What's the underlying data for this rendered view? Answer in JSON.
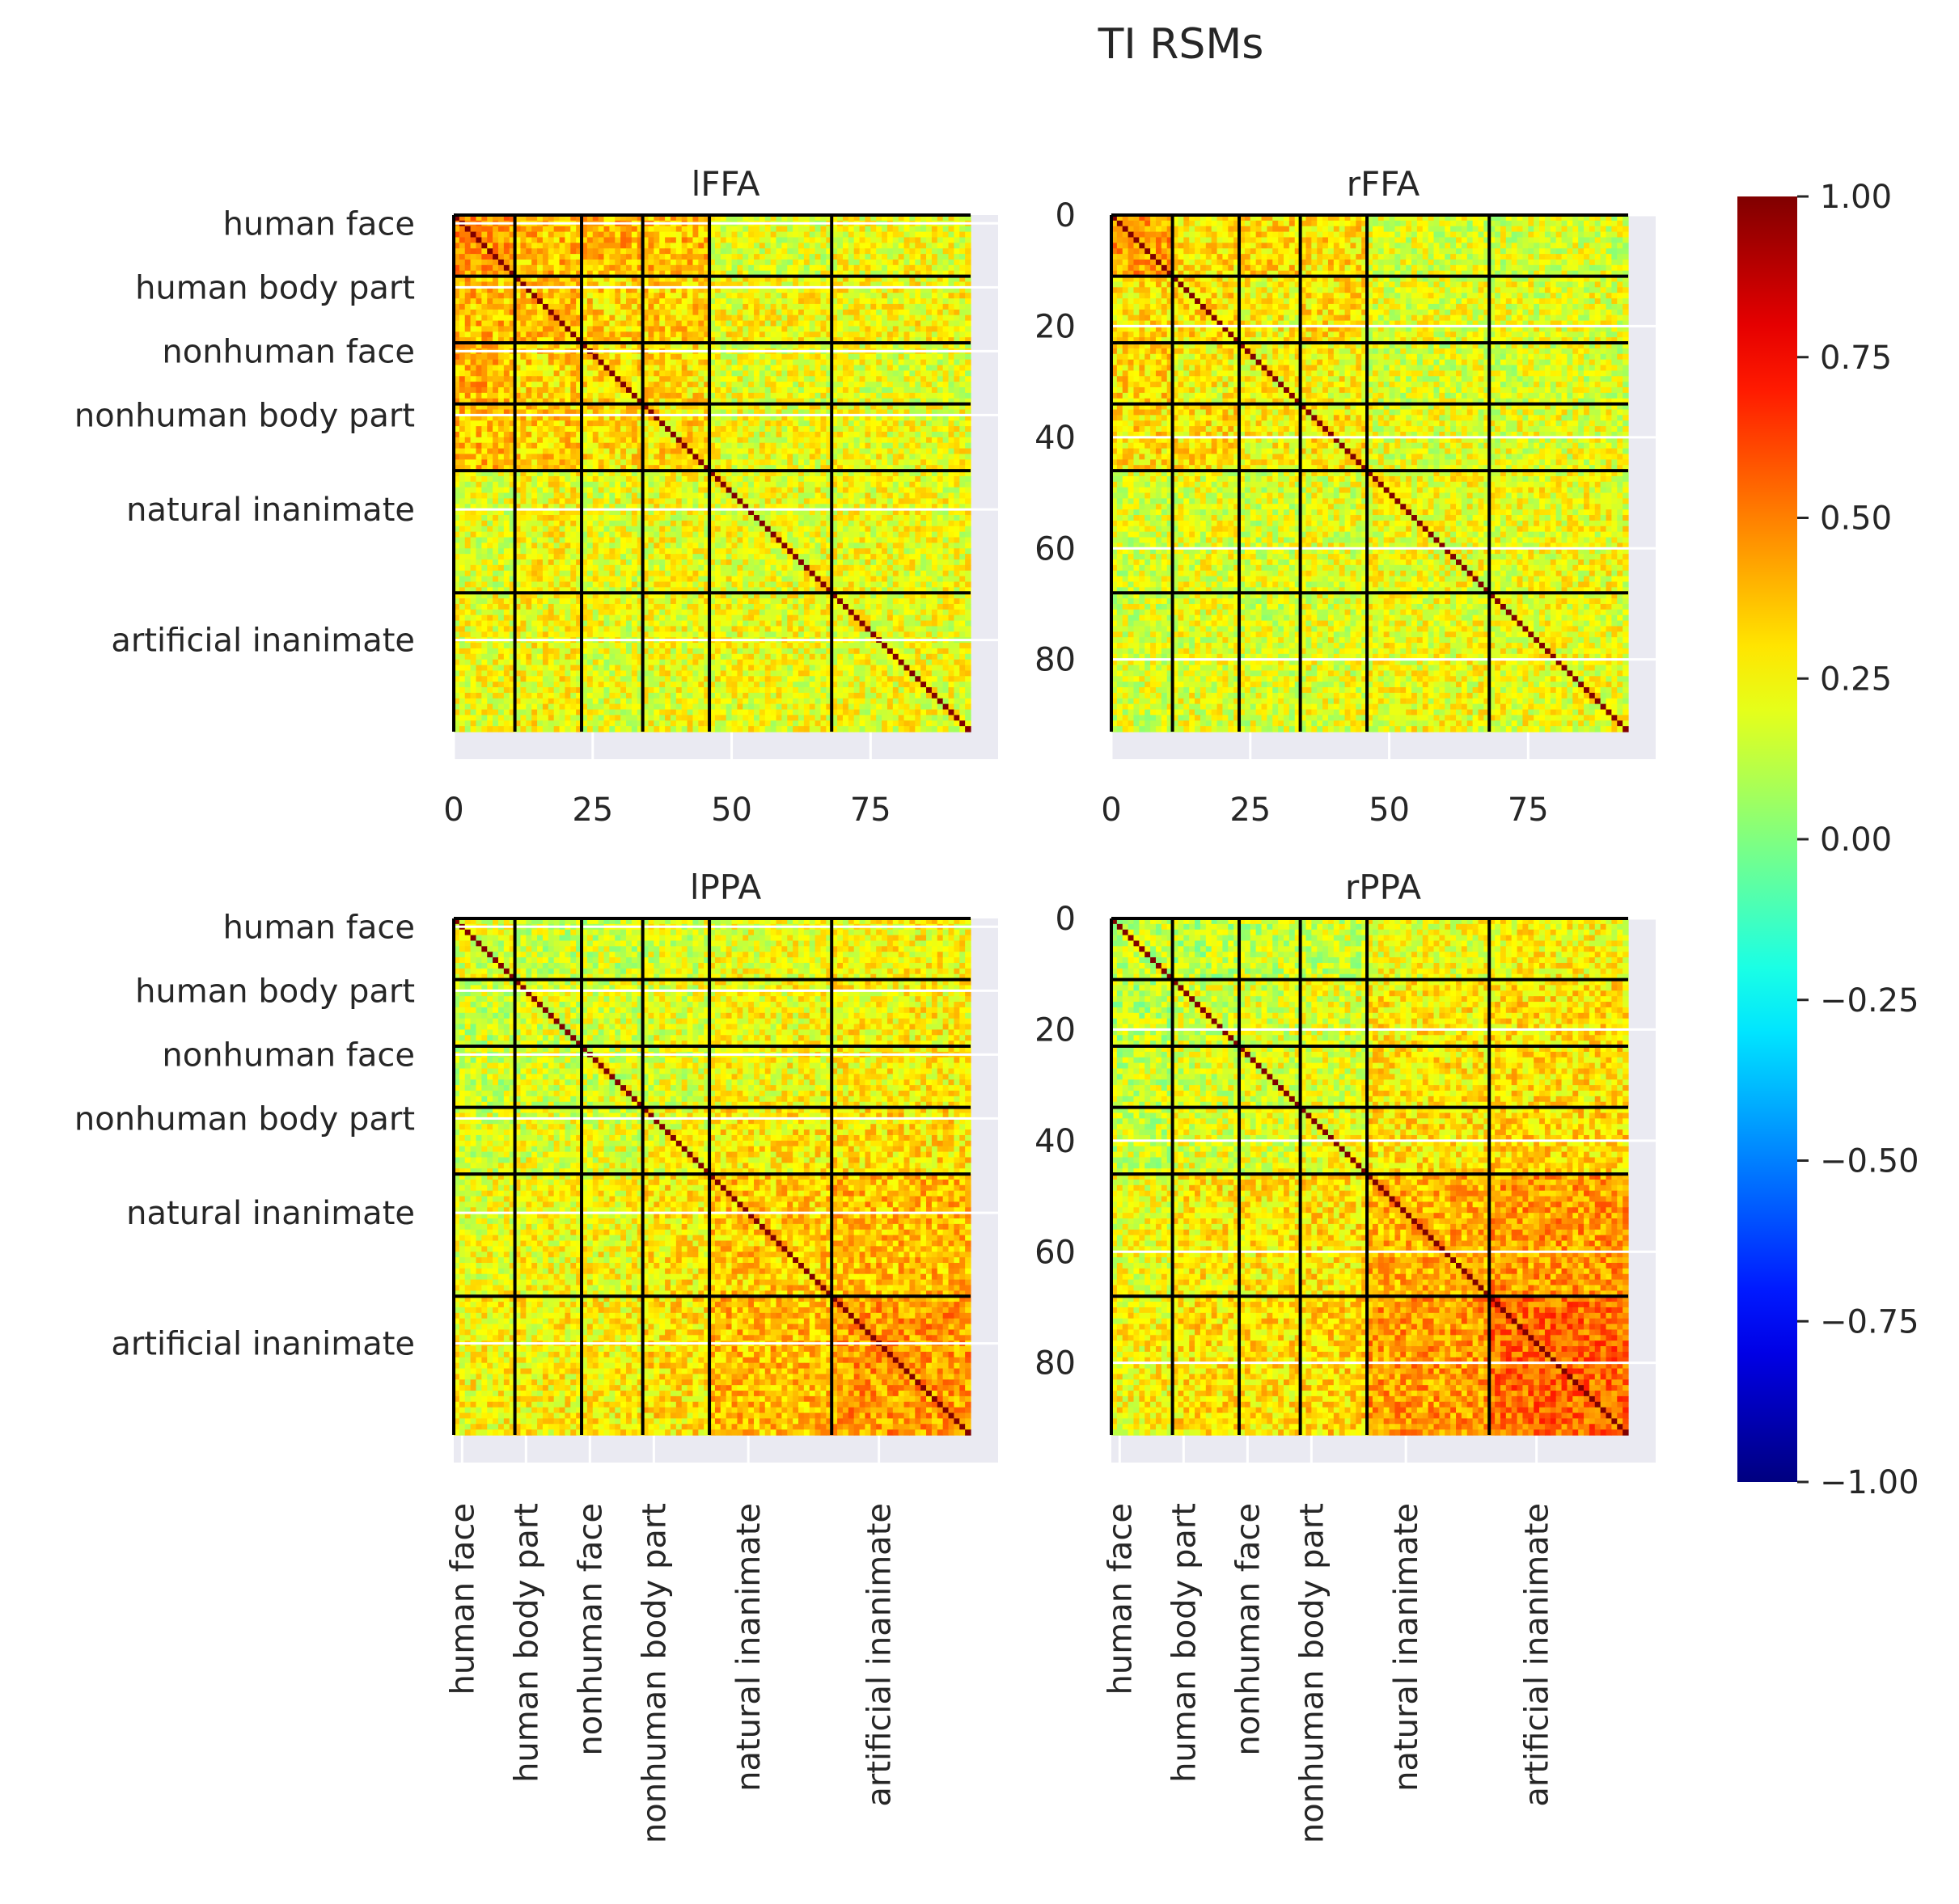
{
  "figure": {
    "title": "TI RSMs"
  },
  "chart_data": {
    "type": "heatmap",
    "matrix_size": 93,
    "categories": [
      "human face",
      "human body part",
      "nonhuman face",
      "nonhuman body part",
      "natural inanimate",
      "artificial inanimate"
    ],
    "category_boundaries": [
      0,
      11,
      23,
      34,
      46,
      68,
      93
    ],
    "numeric_ticks": [
      0,
      25,
      50,
      75
    ],
    "numeric_ticks_y": [
      0,
      20,
      40,
      60,
      80
    ],
    "colormap": "jet",
    "colorbar": {
      "min": -1.0,
      "max": 1.0,
      "tick_values": [
        1.0,
        0.75,
        0.5,
        0.25,
        0.0,
        -0.25,
        -0.5,
        -0.75,
        -1.0
      ],
      "tick_labels": [
        "1.00",
        "0.75",
        "0.50",
        "0.25",
        "0.00",
        "−0.25",
        "−0.50",
        "−0.75",
        "−1.00"
      ]
    },
    "boundary_line_color": "#000000",
    "grid_color": "#ffffff",
    "axes_background": "#eaeaf2",
    "panels": [
      {
        "title": "lFFA",
        "position": "top-left",
        "mean_by_category_block": [
          [
            0.45,
            0.38,
            0.4,
            0.38,
            0.2,
            0.22
          ],
          [
            0.38,
            0.35,
            0.32,
            0.34,
            0.24,
            0.24
          ],
          [
            0.4,
            0.32,
            0.3,
            0.3,
            0.2,
            0.2
          ],
          [
            0.38,
            0.34,
            0.3,
            0.3,
            0.22,
            0.22
          ],
          [
            0.2,
            0.24,
            0.2,
            0.22,
            0.22,
            0.22
          ],
          [
            0.22,
            0.24,
            0.2,
            0.22,
            0.22,
            0.22
          ]
        ]
      },
      {
        "title": "rFFA",
        "position": "top-right",
        "mean_by_category_block": [
          [
            0.45,
            0.3,
            0.32,
            0.3,
            0.18,
            0.18
          ],
          [
            0.3,
            0.3,
            0.25,
            0.3,
            0.2,
            0.2
          ],
          [
            0.32,
            0.25,
            0.25,
            0.25,
            0.18,
            0.18
          ],
          [
            0.3,
            0.3,
            0.25,
            0.28,
            0.2,
            0.2
          ],
          [
            0.18,
            0.2,
            0.18,
            0.2,
            0.22,
            0.22
          ],
          [
            0.18,
            0.2,
            0.18,
            0.2,
            0.22,
            0.22
          ]
        ]
      },
      {
        "title": "lPPA",
        "position": "bottom-left",
        "mean_by_category_block": [
          [
            0.18,
            0.15,
            0.15,
            0.18,
            0.22,
            0.25
          ],
          [
            0.15,
            0.18,
            0.18,
            0.2,
            0.24,
            0.26
          ],
          [
            0.15,
            0.18,
            0.18,
            0.2,
            0.24,
            0.26
          ],
          [
            0.18,
            0.2,
            0.2,
            0.22,
            0.28,
            0.3
          ],
          [
            0.22,
            0.24,
            0.24,
            0.28,
            0.35,
            0.38
          ],
          [
            0.25,
            0.26,
            0.26,
            0.3,
            0.38,
            0.45
          ]
        ]
      },
      {
        "title": "rPPA",
        "position": "bottom-right",
        "mean_by_category_block": [
          [
            0.15,
            0.12,
            0.15,
            0.15,
            0.22,
            0.25
          ],
          [
            0.12,
            0.18,
            0.18,
            0.2,
            0.28,
            0.3
          ],
          [
            0.15,
            0.18,
            0.2,
            0.2,
            0.28,
            0.3
          ],
          [
            0.15,
            0.2,
            0.2,
            0.22,
            0.3,
            0.32
          ],
          [
            0.22,
            0.28,
            0.28,
            0.3,
            0.4,
            0.45
          ],
          [
            0.25,
            0.3,
            0.3,
            0.32,
            0.45,
            0.55
          ]
        ]
      }
    ]
  }
}
